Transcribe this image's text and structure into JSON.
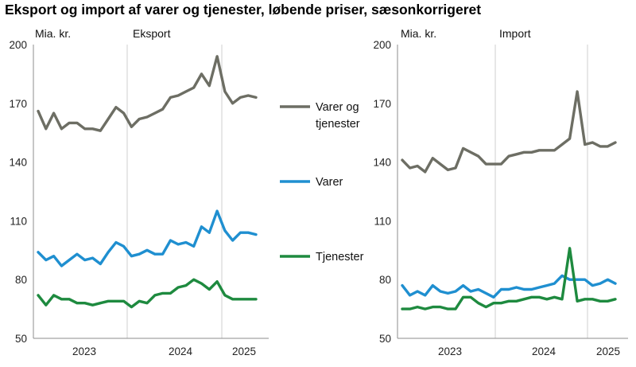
{
  "title": "Eksport og import af varer og tjenester, løbende priser, sæsonkorrigeret",
  "chart_data": [
    {
      "type": "line",
      "panel_title": "Eksport",
      "unit_label": "Mia. kr.",
      "y_ticks": [
        50,
        80,
        110,
        140,
        170,
        200
      ],
      "ylim": [
        50,
        200
      ],
      "year_labels": [
        "2023",
        "2024",
        "2025"
      ],
      "series": [
        {
          "name": "Varer og tjenester",
          "color": "#6d6e64",
          "values": [
            166,
            157,
            165,
            157,
            160,
            160,
            157,
            157,
            156,
            162,
            168,
            165,
            158,
            162,
            163,
            165,
            167,
            173,
            174,
            176,
            178,
            185,
            179,
            194,
            176,
            170,
            173,
            174,
            173
          ]
        },
        {
          "name": "Varer",
          "color": "#1f8fd0",
          "values": [
            94,
            90,
            92,
            87,
            90,
            93,
            90,
            91,
            88,
            94,
            99,
            97,
            92,
            93,
            95,
            93,
            93,
            100,
            98,
            99,
            97,
            107,
            104,
            115,
            105,
            100,
            104,
            104,
            103
          ]
        },
        {
          "name": "Tjenester",
          "color": "#1e8a3f",
          "values": [
            72,
            67,
            72,
            70,
            70,
            68,
            68,
            67,
            68,
            69,
            69,
            69,
            66,
            69,
            68,
            72,
            73,
            73,
            76,
            77,
            80,
            78,
            75,
            79,
            72,
            70,
            70,
            70,
            70
          ]
        }
      ]
    },
    {
      "type": "line",
      "panel_title": "Import",
      "unit_label": "Mia. kr.",
      "y_ticks": [
        50,
        80,
        110,
        140,
        170,
        200
      ],
      "ylim": [
        50,
        200
      ],
      "year_labels": [
        "2023",
        "2024",
        "2025"
      ],
      "series": [
        {
          "name": "Varer og tjenester",
          "color": "#6d6e64",
          "values": [
            141,
            137,
            138,
            135,
            142,
            139,
            136,
            137,
            147,
            145,
            143,
            139,
            139,
            139,
            143,
            144,
            145,
            145,
            146,
            146,
            146,
            149,
            152,
            176,
            149,
            150,
            148,
            148,
            150
          ]
        },
        {
          "name": "Varer",
          "color": "#1f8fd0",
          "values": [
            77,
            72,
            74,
            72,
            77,
            74,
            73,
            74,
            77,
            74,
            75,
            73,
            71,
            75,
            75,
            76,
            75,
            75,
            76,
            77,
            78,
            82,
            80,
            80,
            80,
            77,
            78,
            80,
            78
          ]
        },
        {
          "name": "Tjenester",
          "color": "#1e8a3f",
          "values": [
            65,
            65,
            66,
            65,
            66,
            66,
            65,
            65,
            71,
            71,
            68,
            66,
            68,
            68,
            69,
            69,
            70,
            71,
            71,
            70,
            71,
            70,
            96,
            69,
            70,
            70,
            69,
            69,
            70
          ]
        }
      ]
    }
  ],
  "legend": [
    {
      "line1": "Varer og",
      "line2": "tjenester",
      "color": "#6d6e64"
    },
    {
      "line1": "Varer",
      "line2": "",
      "color": "#1f8fd0"
    },
    {
      "line1": "Tjenester",
      "line2": "",
      "color": "#1e8a3f"
    }
  ]
}
